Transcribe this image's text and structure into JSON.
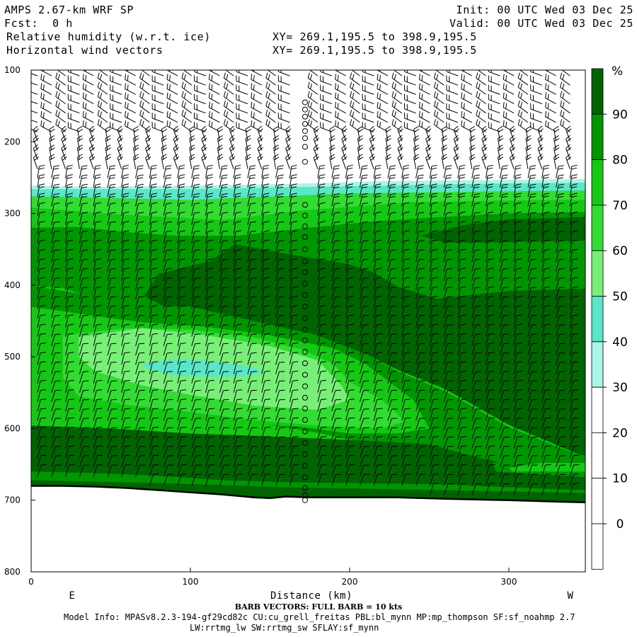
{
  "header": {
    "title_left": "AMPS 2.67-km WRF SP",
    "fcst_label": "Fcst:",
    "fcst_value": "0 h",
    "field1": "Relative humidity (w.r.t. ice)",
    "field2": "Horizontal wind vectors",
    "init": "Init: 00 UTC Wed 03 Dec 25",
    "valid": "Valid: 00 UTC Wed 03 Dec 25",
    "xy1": "XY= 269.1,195.5 to 398.9,195.5",
    "xy2": "XY= 269.1,195.5 to 398.9,195.5"
  },
  "footer": {
    "barb_note": "BARB VECTORS:  FULL BARB = 10 kts",
    "model_info": "Model Info: MPASv8.2.3-194-gf29cd82c CU:cu_grell_freitas PBL:bl_mynn MP:mp_thompson SF:sf_noahmp 2.7",
    "model_info2": "LW:rrtmg_lw SW:rrtmg_sw SFLAY:sf_mynn"
  },
  "chart_data": {
    "type": "heatmap",
    "xlabel": "Distance (km)",
    "x_ticks": [
      "0",
      "100",
      "200",
      "300"
    ],
    "y_ticks": [
      "100",
      "200",
      "300",
      "400",
      "500",
      "600",
      "700",
      "800"
    ],
    "xlim": [
      0,
      348
    ],
    "ylim": [
      100,
      800
    ],
    "left_end_label": "E",
    "right_end_label": "W",
    "colorbar": {
      "unit": "%",
      "levels": [
        "90",
        "80",
        "70",
        "60",
        "50",
        "40",
        "30",
        "20",
        "10",
        "0"
      ],
      "colors": [
        "#006400",
        "#009600",
        "#14c814",
        "#32dc32",
        "#78f078",
        "#5ae6c8",
        "#aaf5e6",
        "#ffffff",
        "#ffffff",
        "#ffffff",
        "#ffffff"
      ]
    },
    "terrain_pressure": [
      [
        0,
        680
      ],
      [
        20,
        680
      ],
      [
        40,
        681
      ],
      [
        60,
        683
      ],
      [
        80,
        686
      ],
      [
        100,
        689
      ],
      [
        120,
        692
      ],
      [
        140,
        696
      ],
      [
        150,
        697
      ],
      [
        160,
        695
      ],
      [
        175,
        696
      ],
      [
        200,
        696
      ],
      [
        230,
        696
      ],
      [
        260,
        698
      ],
      [
        300,
        700
      ],
      [
        330,
        702
      ],
      [
        348,
        703
      ]
    ],
    "wind_column_km": 172,
    "wind_column_pressures": [
      145,
      155,
      165,
      175,
      185,
      195,
      207,
      228,
      288,
      303,
      318,
      333,
      350,
      367,
      382,
      398,
      414,
      430,
      446,
      462,
      477,
      493,
      509,
      525,
      541,
      557,
      572,
      588,
      604,
      620,
      636,
      652,
      668,
      683,
      693,
      700
    ],
    "contours": [
      {
        "level": 30,
        "pts": [
          [
            0,
            261
          ],
          [
            40,
            263
          ],
          [
            100,
            261
          ],
          [
            160,
            259
          ],
          [
            220,
            255
          ],
          [
            300,
            253
          ],
          [
            348,
            252
          ],
          [
            348,
            800
          ],
          [
            0,
            800
          ]
        ]
      },
      {
        "level": 40,
        "pts": [
          [
            0,
            266
          ],
          [
            100,
            266
          ],
          [
            200,
            262
          ],
          [
            300,
            258
          ],
          [
            348,
            257
          ],
          [
            348,
            800
          ],
          [
            0,
            800
          ]
        ]
      },
      {
        "level": 60,
        "pts": [
          [
            0,
            276
          ],
          [
            100,
            281
          ],
          [
            200,
            272
          ],
          [
            300,
            269
          ],
          [
            348,
            268
          ],
          [
            348,
            800
          ],
          [
            0,
            800
          ]
        ]
      },
      {
        "level": 70,
        "pts": [
          [
            0,
            292
          ],
          [
            60,
            302
          ],
          [
            120,
            309
          ],
          [
            170,
            296
          ],
          [
            240,
            284
          ],
          [
            300,
            282
          ],
          [
            348,
            281
          ],
          [
            348,
            800
          ],
          [
            0,
            800
          ]
        ]
      },
      {
        "level": 80,
        "pts": [
          [
            0,
            320
          ],
          [
            30,
            319
          ],
          [
            60,
            326
          ],
          [
            90,
            331
          ],
          [
            130,
            331
          ],
          [
            170,
            321
          ],
          [
            210,
            312
          ],
          [
            250,
            306
          ],
          [
            300,
            300
          ],
          [
            348,
            298
          ],
          [
            348,
            800
          ],
          [
            0,
            800
          ]
        ]
      },
      {
        "level": 90,
        "pts": [
          [
            71,
            415
          ],
          [
            80,
            384
          ],
          [
            112,
            367
          ],
          [
            128,
            343
          ],
          [
            160,
            356
          ],
          [
            200,
            371
          ],
          [
            215,
            382
          ],
          [
            230,
            402
          ],
          [
            255,
            419
          ],
          [
            300,
            408
          ],
          [
            348,
            405
          ],
          [
            348,
            660
          ],
          [
            300,
            630
          ],
          [
            240,
            580
          ],
          [
            200,
            555
          ],
          [
            140,
            500
          ],
          [
            100,
            450
          ]
        ]
      },
      {
        "level": 90,
        "pts": [
          [
            245,
            331
          ],
          [
            270,
            317
          ],
          [
            300,
            308
          ],
          [
            348,
            305
          ],
          [
            348,
            338
          ],
          [
            300,
            340
          ],
          [
            260,
            341
          ]
        ]
      },
      {
        "level": 70,
        "pts": [
          [
            0,
            401
          ],
          [
            20,
            404
          ],
          [
            40,
            418
          ],
          [
            60,
            431
          ],
          [
            100,
            432
          ],
          [
            140,
            451
          ],
          [
            180,
            474
          ],
          [
            210,
            496
          ],
          [
            230,
            518
          ],
          [
            260,
            545
          ],
          [
            300,
            595
          ],
          [
            348,
            640
          ],
          [
            348,
            800
          ],
          [
            0,
            800
          ]
        ]
      },
      {
        "level": 80,
        "pts": [
          [
            0,
            401
          ],
          [
            40,
            415
          ],
          [
            60,
            428
          ],
          [
            100,
            430
          ],
          [
            140,
            450
          ],
          [
            180,
            470
          ],
          [
            210,
            496
          ],
          [
            230,
            520
          ],
          [
            260,
            548
          ],
          [
            300,
            598
          ],
          [
            330,
            625
          ],
          [
            348,
            640
          ],
          [
            348,
            686
          ],
          [
            300,
            660
          ],
          [
            250,
            640
          ],
          [
            220,
            625
          ],
          [
            180,
            606
          ],
          [
            140,
            591
          ],
          [
            100,
            580
          ],
          [
            60,
            572
          ],
          [
            20,
            560
          ],
          [
            0,
            555
          ]
        ]
      },
      {
        "level": 70,
        "pts": [
          [
            0,
            430
          ],
          [
            40,
            443
          ],
          [
            70,
            452
          ],
          [
            110,
            458
          ],
          [
            150,
            470
          ],
          [
            190,
            488
          ],
          [
            210,
            510
          ],
          [
            240,
            560
          ],
          [
            250,
            600
          ],
          [
            230,
            607
          ],
          [
            200,
            607
          ],
          [
            170,
            598
          ],
          [
            120,
            590
          ],
          [
            80,
            584
          ],
          [
            40,
            575
          ],
          [
            0,
            563
          ]
        ]
      },
      {
        "level": 90,
        "pts": [
          [
            0,
            596
          ],
          [
            50,
            600
          ],
          [
            100,
            607
          ],
          [
            140,
            610
          ],
          [
            180,
            614
          ],
          [
            220,
            618
          ],
          [
            250,
            622
          ],
          [
            280,
            640
          ],
          [
            320,
            660
          ],
          [
            348,
            668
          ],
          [
            348,
            700
          ],
          [
            0,
            700
          ]
        ]
      },
      {
        "level": 60,
        "pts": [
          [
            20,
            470
          ],
          [
            60,
            460
          ],
          [
            100,
            462
          ],
          [
            140,
            473
          ],
          [
            170,
            490
          ],
          [
            190,
            510
          ],
          [
            200,
            535
          ],
          [
            220,
            560
          ],
          [
            235,
            590
          ],
          [
            220,
            600
          ],
          [
            180,
            596
          ],
          [
            140,
            588
          ],
          [
            100,
            577
          ],
          [
            60,
            567
          ],
          [
            30,
            555
          ],
          [
            20,
            530
          ]
        ]
      },
      {
        "level": 50,
        "pts": [
          [
            30,
            472
          ],
          [
            70,
            460
          ],
          [
            110,
            470
          ],
          [
            150,
            485
          ],
          [
            180,
            505
          ],
          [
            195,
            540
          ],
          [
            200,
            560
          ],
          [
            180,
            574
          ],
          [
            140,
            568
          ],
          [
            100,
            553
          ],
          [
            70,
            540
          ],
          [
            40,
            520
          ],
          [
            30,
            500
          ]
        ]
      },
      {
        "level": 40,
        "pts": [
          [
            70,
            509
          ],
          [
            90,
            503
          ],
          [
            110,
            505
          ],
          [
            135,
            513
          ],
          [
            148,
            520
          ],
          [
            135,
            527
          ],
          [
            110,
            528
          ],
          [
            90,
            526
          ],
          [
            72,
            516
          ]
        ]
      },
      {
        "level": 80,
        "pts": [
          [
            290,
            648
          ],
          [
            320,
            638
          ],
          [
            348,
            637
          ],
          [
            348,
            668
          ],
          [
            320,
            664
          ],
          [
            292,
            660
          ]
        ]
      },
      {
        "level": 70,
        "pts": [
          [
            300,
            655
          ],
          [
            320,
            648
          ],
          [
            348,
            648
          ],
          [
            348,
            660
          ],
          [
            320,
            660
          ],
          [
            302,
            660
          ]
        ]
      },
      {
        "level": 80,
        "pts": [
          [
            0,
            660
          ],
          [
            40,
            662
          ],
          [
            80,
            666
          ],
          [
            120,
            672
          ],
          [
            160,
            675
          ],
          [
            200,
            676
          ],
          [
            260,
            678
          ],
          [
            300,
            682
          ],
          [
            348,
            686
          ],
          [
            348,
            700
          ],
          [
            0,
            700
          ]
        ]
      },
      {
        "level": 90,
        "pts": [
          [
            0,
            672
          ],
          [
            80,
            676
          ],
          [
            160,
            682
          ],
          [
            260,
            686
          ],
          [
            348,
            690
          ],
          [
            348,
            705
          ],
          [
            0,
            705
          ]
        ]
      }
    ]
  }
}
